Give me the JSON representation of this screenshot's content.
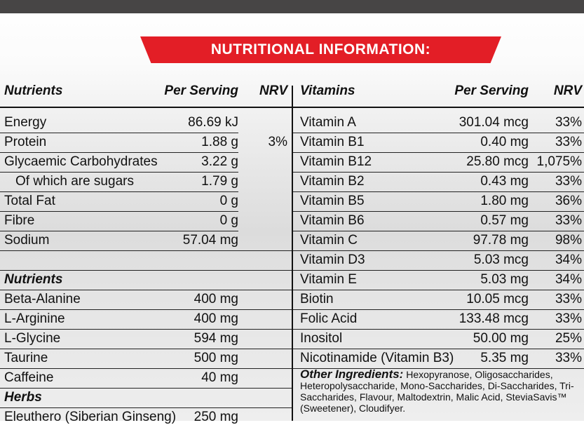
{
  "title": "NUTRITIONAL INFORMATION:",
  "left": {
    "header": {
      "col1": "Nutrients",
      "col2": "Per Serving",
      "col3": "NRV"
    },
    "rows": [
      {
        "name": "Energy",
        "value": "86.69 kJ",
        "nrv": ""
      },
      {
        "name": "Protein",
        "value": "1.88 g",
        "nrv": "3%"
      },
      {
        "name": "Glycaemic Carbohydrates",
        "value": "3.22 g",
        "nrv": ""
      },
      {
        "name": "Of which are sugars",
        "value": "1.79 g",
        "nrv": ""
      },
      {
        "name": "Total Fat",
        "value": "0 g",
        "nrv": ""
      },
      {
        "name": "Fibre",
        "value": "0 g",
        "nrv": ""
      },
      {
        "name": "Sodium",
        "value": "57.04 mg",
        "nrv": ""
      },
      {
        "name": "",
        "value": "",
        "nrv": ""
      },
      {
        "name": "Nutrients",
        "value": "",
        "nrv": ""
      },
      {
        "name": "Beta-Alanine",
        "value": "400 mg",
        "nrv": ""
      },
      {
        "name": "L-Arginine",
        "value": "400 mg",
        "nrv": ""
      },
      {
        "name": "L-Glycine",
        "value": "594 mg",
        "nrv": ""
      },
      {
        "name": "Taurine",
        "value": "500 mg",
        "nrv": ""
      },
      {
        "name": "Caffeine",
        "value": "40 mg",
        "nrv": ""
      },
      {
        "name": "Herbs",
        "value": "",
        "nrv": ""
      },
      {
        "name": "Eleuthero (Siberian Ginseng)",
        "value": "250 mg",
        "nrv": ""
      }
    ]
  },
  "right": {
    "header": {
      "col1": "Vitamins",
      "col2": "Per Serving",
      "col3": "NRV"
    },
    "rows": [
      {
        "name": "Vitamin A",
        "value": "301.04 mcg",
        "nrv": "33%"
      },
      {
        "name": "Vitamin B1",
        "value": "0.40 mg",
        "nrv": "33%"
      },
      {
        "name": "Vitamin B12",
        "value": "25.80 mcg",
        "nrv": "1,075%"
      },
      {
        "name": "Vitamin B2",
        "value": "0.43 mg",
        "nrv": "33%"
      },
      {
        "name": "Vitamin B5",
        "value": "1.80 mg",
        "nrv": "36%"
      },
      {
        "name": "Vitamin B6",
        "value": "0.57 mg",
        "nrv": "33%"
      },
      {
        "name": "Vitamin C",
        "value": "97.78 mg",
        "nrv": "98%"
      },
      {
        "name": "Vitamin D3",
        "value": "5.03 mcg",
        "nrv": "34%"
      },
      {
        "name": "Vitamin E",
        "value": "5.03 mg",
        "nrv": "34%"
      },
      {
        "name": "Biotin",
        "value": "10.05 mcg",
        "nrv": "33%"
      },
      {
        "name": "Folic Acid",
        "value": "133.48 mcg",
        "nrv": "33%"
      },
      {
        "name": "Inositol",
        "value": "50.00 mg",
        "nrv": "25%"
      },
      {
        "name": "Nicotinamide (Vitamin B3)",
        "value": "5.35 mg",
        "nrv": "33%"
      }
    ]
  },
  "other_ingredients": {
    "label": "Other Ingredients:",
    "text": "Hexopyranose, Oligosaccharides, Heteropolysaccharide, Mono-Saccharides, Di-Saccharides, Tri-Saccharides, Flavour, Maltodextrin, Malic Acid, SteviaSavis™ (Sweetener), Cloudifyer."
  }
}
